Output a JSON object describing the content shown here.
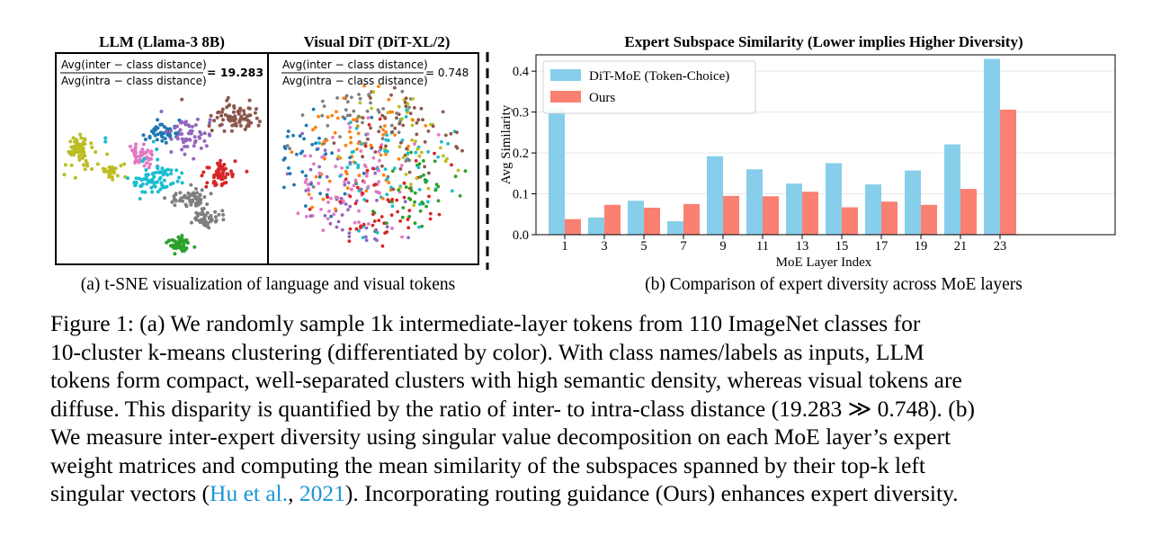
{
  "panel_a": {
    "left_title": "LLM (Llama-3 8B)",
    "right_title": "Visual DiT (DiT-XL/2)",
    "numerator": "Avg(inter − class distance)",
    "denominator": "Avg(intra − class distance)",
    "llm_ratio": "= 19.283",
    "dit_ratio": "= 0.748",
    "subcaption": "(a) t-SNE visualization of language and visual tokens"
  },
  "panel_b": {
    "subcaption": "(b) Comparison of expert diversity across MoE layers"
  },
  "chart_data": {
    "type": "bar",
    "title": "Expert Subspace Similarity (Lower implies Higher Diversity)",
    "xlabel": "MoE Layer Index",
    "ylabel": "Avg Similarity",
    "categories": [
      "1",
      "3",
      "5",
      "7",
      "9",
      "11",
      "13",
      "15",
      "17",
      "19",
      "21",
      "23"
    ],
    "ylim": [
      0,
      0.44
    ],
    "yticks": [
      "0.0",
      "0.1",
      "0.2",
      "0.3",
      "0.4"
    ],
    "legend_position": "top-left",
    "grid": true,
    "series": [
      {
        "name": "DiT-MoE (Token-Choice)",
        "color": "#87ceeb",
        "values": [
          0.308,
          0.042,
          0.083,
          0.033,
          0.192,
          0.16,
          0.125,
          0.175,
          0.123,
          0.157,
          0.221,
          0.43
        ]
      },
      {
        "name": "Ours",
        "color": "#fa8072",
        "values": [
          0.038,
          0.073,
          0.066,
          0.075,
          0.095,
          0.094,
          0.105,
          0.067,
          0.081,
          0.073,
          0.112,
          0.306
        ]
      }
    ]
  },
  "caption": {
    "line1": "Figure 1: (a) We randomly sample 1k intermediate-layer tokens from 110 ImageNet classes for",
    "line2": "10-cluster k-means clustering (differentiated by color). With class names/labels as inputs, LLM",
    "line3": "tokens form compact, well-separated clusters with high semantic density, whereas visual tokens are",
    "line4": "diffuse. This disparity is quantified by the ratio of inter- to intra-class distance (19.283 ≫ 0.748). (b)",
    "line5": "We measure inter-expert diversity using singular value decomposition on each MoE layer’s expert",
    "line6": "weight matrices and computing the mean similarity of the subspaces spanned by their top-k left",
    "line7_pre": "singular vectors (",
    "cite_author": "Hu et al.",
    "cite_sep": ", ",
    "cite_year": "2021",
    "line7_post": "). Incorporating routing guidance (Ours) enhances expert diversity."
  }
}
